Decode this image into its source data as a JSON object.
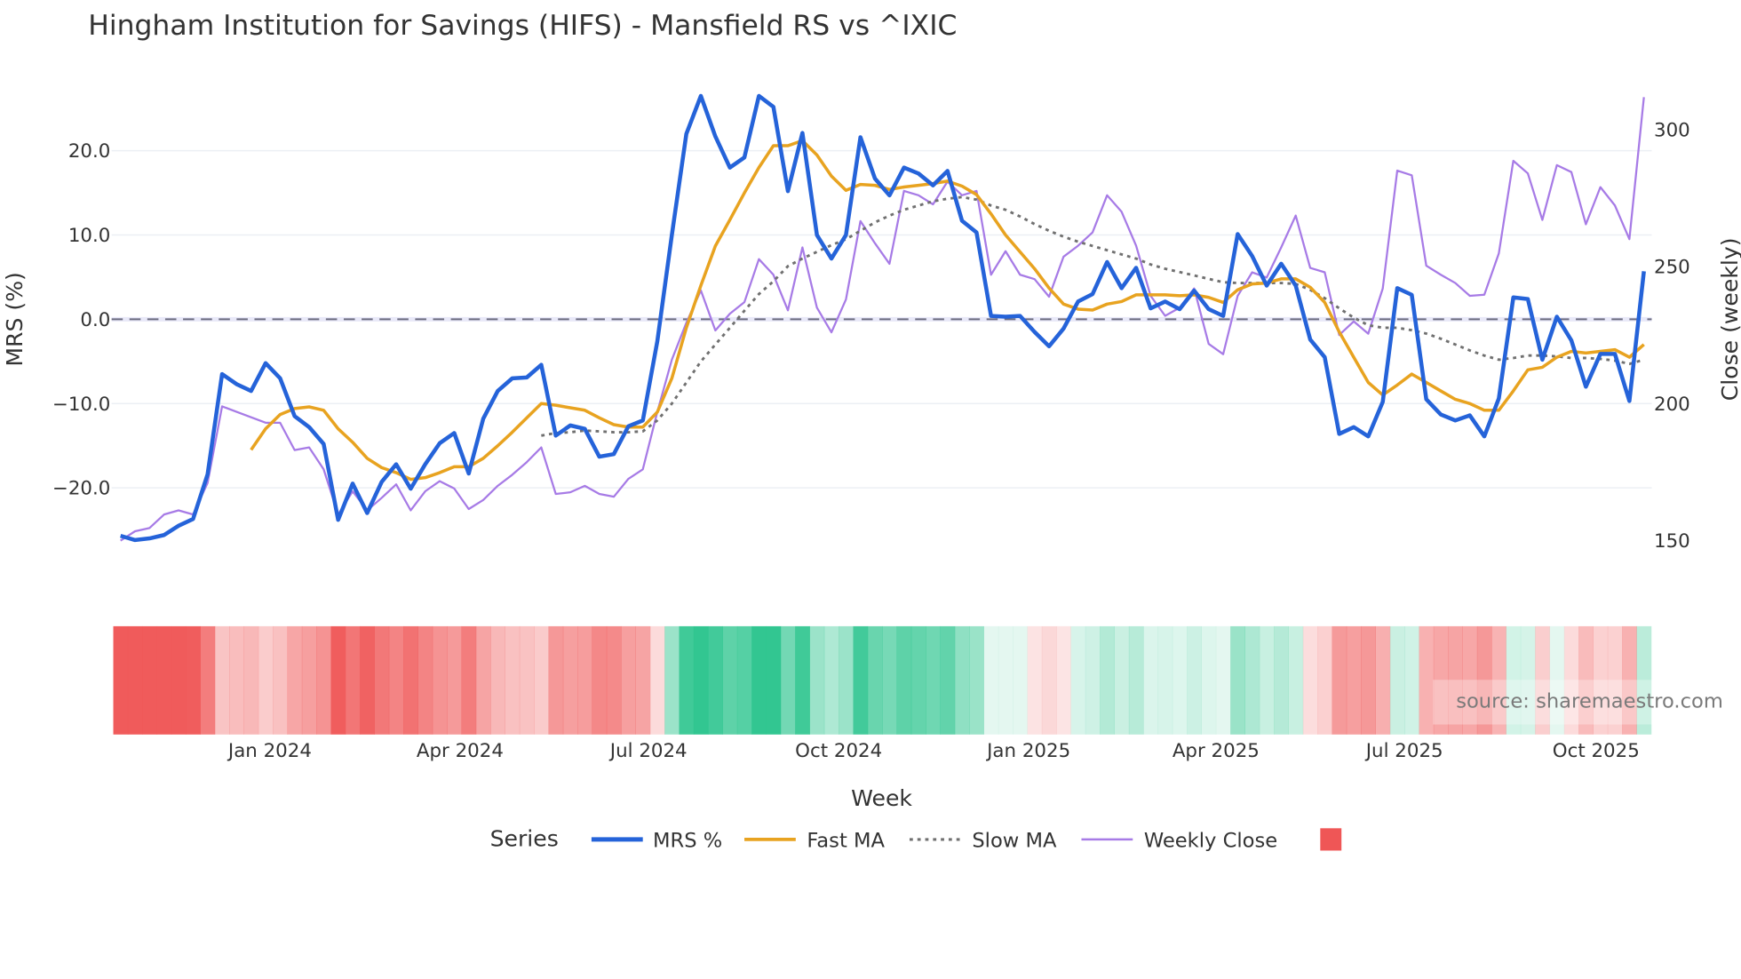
{
  "chart_data": {
    "type": "line",
    "title": "Hingham Institution for Savings (HIFS) - Mansfield RS vs ^IXIC",
    "xlabel": "Week",
    "ylabel": "MRS (%)",
    "y2label": "Close (weekly)",
    "ylim": [
      -28,
      28
    ],
    "y2lim": [
      141,
      320
    ],
    "yticks": [
      "20.0",
      "10.0",
      "0.0",
      "−10.0",
      "−20.0"
    ],
    "ytick_values": [
      20,
      10,
      0,
      -10,
      -20
    ],
    "y2ticks": [
      "300",
      "250",
      "200",
      "150"
    ],
    "y2tick_values": [
      300,
      250,
      200,
      150
    ],
    "xticks": [
      "Jan 2024",
      "Apr 2024",
      "Jul 2024",
      "Oct 2024",
      "Jan 2025",
      "Apr 2025",
      "Jul 2025",
      "Oct 2025"
    ],
    "xtick_week_index": [
      10.3,
      23.4,
      36.4,
      49.5,
      62.6,
      75.5,
      88.5,
      101.7
    ],
    "grid": true,
    "zero_line": "dashed",
    "legend_title": "Series",
    "legend_placement": "bottom-center",
    "source": "source: sharemaestro.com",
    "colors": {
      "mrs": "#2563d9",
      "fast": "#e8a320",
      "slow": "#707070",
      "close": "#a77be6",
      "neg": "#ef5656",
      "pos": "#2bc48d"
    },
    "series": [
      {
        "name": "MRS %",
        "key": "mrs",
        "axis": "y",
        "values": [
          -25.7,
          -26.2,
          -26,
          -25.6,
          -24.5,
          -23.7,
          -18.4,
          -6.5,
          -7.7,
          -8.5,
          -5.2,
          -7,
          -11.5,
          -12.8,
          -14.8,
          -23.8,
          -19.5,
          -23,
          -19.3,
          -17.2,
          -20.1,
          -17.2,
          -14.7,
          -13.5,
          -18.3,
          -11.8,
          -8.5,
          -7,
          -6.9,
          -5.4,
          -13.8,
          -12.6,
          -13,
          -16.3,
          -16,
          -12.7,
          -12,
          -2.6,
          10,
          22,
          26.5,
          21.7,
          18,
          19.2,
          26.5,
          25.2,
          15.2,
          22.1,
          10,
          7.2,
          10,
          21.6,
          16.7,
          14.7,
          18,
          17.3,
          15.9,
          17.6,
          11.7,
          10.3,
          0.4,
          0.3,
          0.4,
          -1.5,
          -3.2,
          -1.1,
          2.1,
          3,
          6.8,
          3.7,
          6.1,
          1.3,
          2.1,
          1.2,
          3.4,
          1.2,
          0.4,
          10.1,
          7.5,
          4,
          6.6,
          4,
          -2.4,
          -4.5,
          -13.6,
          -12.8,
          -13.9,
          -9.8,
          3.7,
          2.9,
          -9.5,
          -11.3,
          -12,
          -11.4,
          -13.9,
          -9.4,
          2.6,
          2.4,
          -4.8,
          0.3,
          -2.5,
          -8,
          -4.1,
          -4.1,
          -9.7,
          5.7
        ]
      },
      {
        "name": "Fast MA",
        "key": "fast",
        "axis": "y",
        "values": [
          null,
          null,
          null,
          null,
          null,
          null,
          null,
          null,
          null,
          -15.5,
          -13,
          -11.3,
          -10.6,
          -10.4,
          -10.8,
          -13,
          -14.6,
          -16.5,
          -17.6,
          -18.2,
          -19,
          -18.8,
          -18.2,
          -17.5,
          -17.5,
          -16.5,
          -15,
          -13.4,
          -11.7,
          -10,
          -10.2,
          -10.5,
          -10.8,
          -11.7,
          -12.5,
          -12.8,
          -12.8,
          -11,
          -7,
          -1,
          4,
          8.7,
          11.8,
          15,
          18,
          20.6,
          20.6,
          21.2,
          19.5,
          17,
          15.3,
          16,
          15.9,
          15.4,
          15.7,
          15.9,
          16.1,
          16.4,
          15.8,
          14.8,
          12.5,
          10,
          8,
          6,
          3.7,
          1.8,
          1.2,
          1.1,
          1.8,
          2.1,
          2.9,
          2.9,
          2.9,
          2.8,
          2.9,
          2.6,
          2,
          3.5,
          4.2,
          4.3,
          4.8,
          4.8,
          3.8,
          2,
          -1.5,
          -4.5,
          -7.5,
          -9,
          -7.8,
          -6.5,
          -7.5,
          -8.5,
          -9.5,
          -10,
          -10.8,
          -10.8,
          -8.5,
          -6,
          -5.7,
          -4.5,
          -3.8,
          -4,
          -3.8,
          -3.6,
          -4.5,
          -3
        ]
      },
      {
        "name": "Slow MA",
        "key": "slow",
        "axis": "y",
        "values": [
          null,
          null,
          null,
          null,
          null,
          null,
          null,
          null,
          null,
          null,
          null,
          null,
          null,
          null,
          null,
          null,
          null,
          null,
          null,
          null,
          null,
          null,
          null,
          null,
          null,
          null,
          null,
          null,
          null,
          -13.8,
          -13.5,
          -13.4,
          -13.2,
          -13.3,
          -13.4,
          -13.4,
          -13.3,
          -12,
          -10,
          -7.5,
          -5,
          -3,
          -1,
          1,
          3,
          4.5,
          6.3,
          7.2,
          8,
          8.8,
          9.5,
          10.5,
          11.5,
          12.3,
          13,
          13.5,
          14,
          14.3,
          14.5,
          14.2,
          13.5,
          13,
          12.2,
          11.3,
          10.5,
          9.8,
          9.2,
          8.7,
          8.2,
          7.7,
          7.2,
          6.5,
          6,
          5.6,
          5.2,
          4.8,
          4.4,
          4.3,
          4.3,
          4.3,
          4.3,
          4.2,
          3.5,
          2.5,
          1.3,
          0.2,
          -0.7,
          -1,
          -1,
          -1.3,
          -1.7,
          -2.3,
          -3,
          -3.7,
          -4.3,
          -4.8,
          -4.6,
          -4.3,
          -4.3,
          -4.4,
          -4.6,
          -4.6,
          -4.7,
          -4.9,
          -5.3,
          -4.8
        ]
      },
      {
        "name": "Weekly Close",
        "key": "close",
        "axis": "y2",
        "values": [
          150,
          153.4,
          154.6,
          159.5,
          161,
          159.5,
          171,
          199,
          197,
          195,
          193,
          193,
          183,
          184,
          176,
          159.5,
          168,
          161,
          165.6,
          170.5,
          161,
          168,
          171.7,
          169,
          161.5,
          164.8,
          170,
          174,
          178.6,
          184,
          167,
          167.6,
          170,
          167,
          166,
          172.5,
          176,
          197,
          216,
          229.5,
          241.3,
          226.7,
          232.8,
          237,
          252.7,
          247,
          234,
          257,
          235,
          226,
          238,
          266.6,
          258.5,
          251,
          277.6,
          276,
          272.7,
          281,
          276,
          277.6,
          247,
          255.6,
          247,
          245.4,
          239,
          253.6,
          257.6,
          262.5,
          276,
          270,
          257.6,
          239.3,
          232,
          235,
          242,
          221.8,
          218,
          239.3,
          247.9,
          246,
          257,
          268.6,
          249.5,
          247.9,
          225,
          230,
          225.5,
          242,
          285,
          283.3,
          250.3,
          247,
          244,
          239.3,
          239.7,
          254.8,
          288.6,
          284,
          267,
          287,
          284.5,
          265.4,
          279,
          272.3,
          260,
          311.8
        ]
      }
    ]
  }
}
